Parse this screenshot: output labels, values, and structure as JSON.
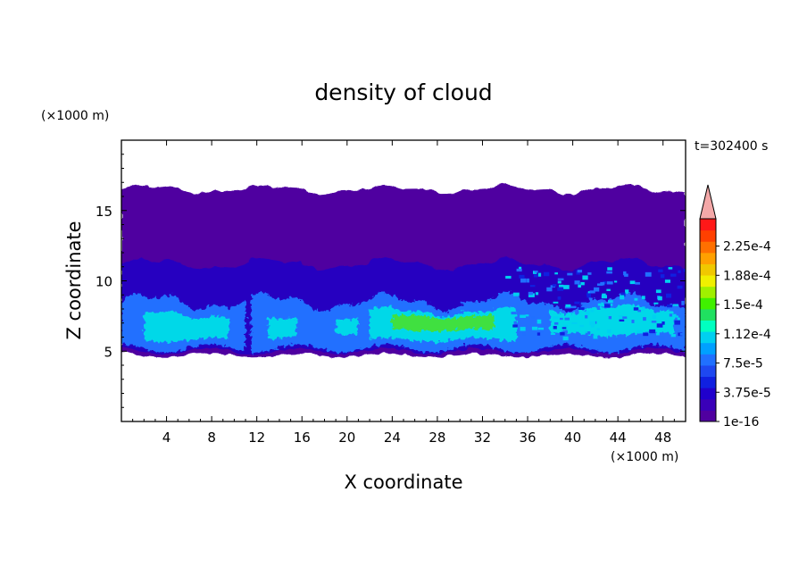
{
  "chart_data": {
    "type": "heatmap",
    "title": "density of cloud",
    "xlabel": "X coordinate",
    "ylabel": "Z coordinate",
    "x_unit": "(×1000 m)",
    "y_unit": "(×1000 m)",
    "time_label": "t=302400 s",
    "xlim": [
      0,
      50
    ],
    "ylim": [
      0,
      20
    ],
    "xticks": [
      4,
      8,
      12,
      16,
      20,
      24,
      28,
      32,
      36,
      40,
      44,
      48
    ],
    "yticks": [
      5,
      10,
      15
    ],
    "colorbar": {
      "labels": [
        {
          "value": 0.000225,
          "text": "2.25e-4"
        },
        {
          "value": 0.0001875,
          "text": "1.88e-4"
        },
        {
          "value": 0.00015,
          "text": "1.5e-4"
        },
        {
          "value": 0.0001125,
          "text": "1.12e-4"
        },
        {
          "value": 7.5e-05,
          "text": "7.5e-5"
        },
        {
          "value": 3.75e-05,
          "text": "3.75e-5"
        },
        {
          "value": 1e-16,
          "text": "1e-16"
        }
      ],
      "colors": [
        "#5000a0",
        "#3a00b8",
        "#2000cc",
        "#1020e0",
        "#1e48f0",
        "#2070ff",
        "#00a0ff",
        "#00d0f0",
        "#00ffc0",
        "#20e060",
        "#40f000",
        "#a0f000",
        "#f0f000",
        "#f0c800",
        "#ffa000",
        "#ff7000",
        "#ff4000",
        "#ff1818"
      ],
      "extend_color": "#f4a8a8"
    },
    "layers": [
      {
        "level": "1e-16",
        "color": "#5000a0",
        "z_bottom": 4.7,
        "z_top": 16.5
      },
      {
        "level": "low",
        "color": "#2800c0",
        "z_bottom": 5.0,
        "z_top": 11.2
      },
      {
        "level": "mid",
        "color": "#2070ff",
        "z_bottom": 5.2,
        "z_top": 8.5
      },
      {
        "level": "high",
        "color": "#00d8e8",
        "z_bottom": 5.7,
        "z_top": 7.6
      },
      {
        "level": "peak",
        "color": "#40e040",
        "x_range": [
          24,
          33
        ],
        "z_range": [
          6.5,
          7.5
        ]
      }
    ]
  }
}
